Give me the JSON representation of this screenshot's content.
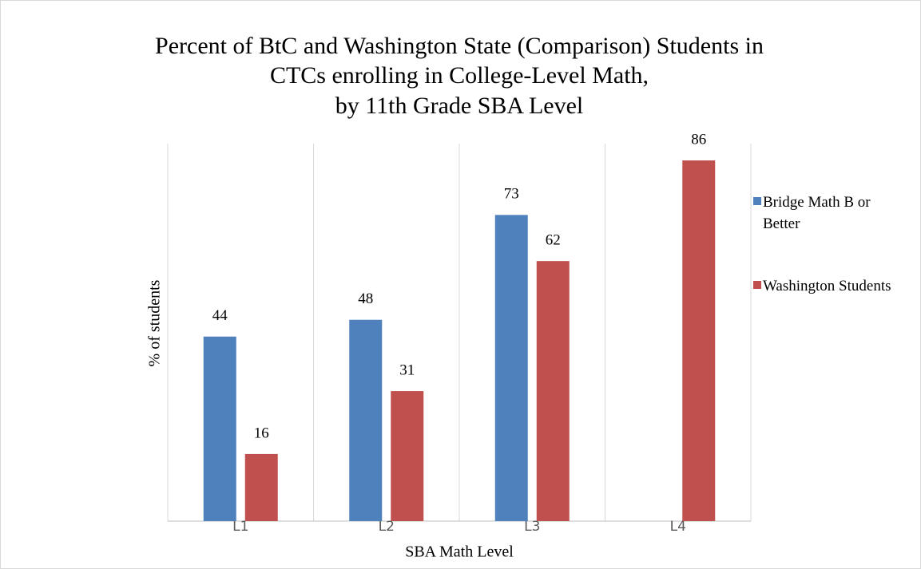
{
  "chart_data": {
    "type": "bar",
    "title": [
      "Percent of BtC and Washington State (Comparison) Students in",
      "CTCs enrolling in College-Level Math,",
      "by 11th Grade SBA Level"
    ],
    "x_label": "SBA Math Level",
    "y_label": "% of students",
    "categories": [
      "L1",
      "L2",
      "L3",
      "L4"
    ],
    "series": [
      {
        "name": "Bridge Math B or Better",
        "color": "#4f81bd",
        "values": [
          44,
          48,
          73,
          null
        ]
      },
      {
        "name": "Washington Students",
        "color": "#c0504d",
        "values": [
          16,
          31,
          62,
          86
        ]
      }
    ],
    "ylim": [
      0,
      90
    ],
    "legend": "right"
  }
}
